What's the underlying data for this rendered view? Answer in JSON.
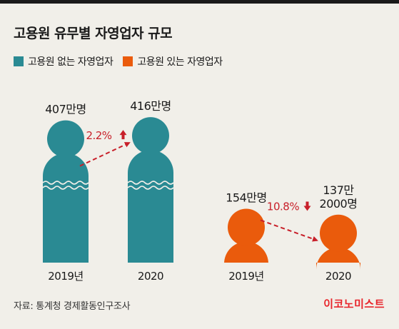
{
  "title": "고용원 유무별 자영업자 규모",
  "legend": [
    {
      "label": "고용원 없는 자영업자",
      "color": "#2a8a93"
    },
    {
      "label": "고용원 있는 자영업자",
      "color": "#ea5b0c"
    }
  ],
  "chart_data": {
    "type": "bar",
    "unit": "만명",
    "categories": [
      "2019년",
      "2020"
    ],
    "series": [
      {
        "name": "고용원 없는 자영업자",
        "color": "#2a8a93",
        "values": [
          407,
          416
        ],
        "value_labels": [
          "407만명",
          "416만명"
        ],
        "x_labels": [
          "2019년",
          "2020"
        ],
        "change_label": "2.2%",
        "change_direction": "up"
      },
      {
        "name": "고용원 있는 자영업자",
        "color": "#ea5b0c",
        "values": [
          154,
          137.2
        ],
        "value_labels": [
          "154만명",
          "137만\n2000명"
        ],
        "x_labels": [
          "2019년",
          "2020"
        ],
        "change_label": "10.8%",
        "change_direction": "down"
      }
    ],
    "arrow_color": "#c8202a"
  },
  "footer": {
    "source": "자료: 통계청 경제활동인구조사",
    "brand": "이코노미스트"
  }
}
